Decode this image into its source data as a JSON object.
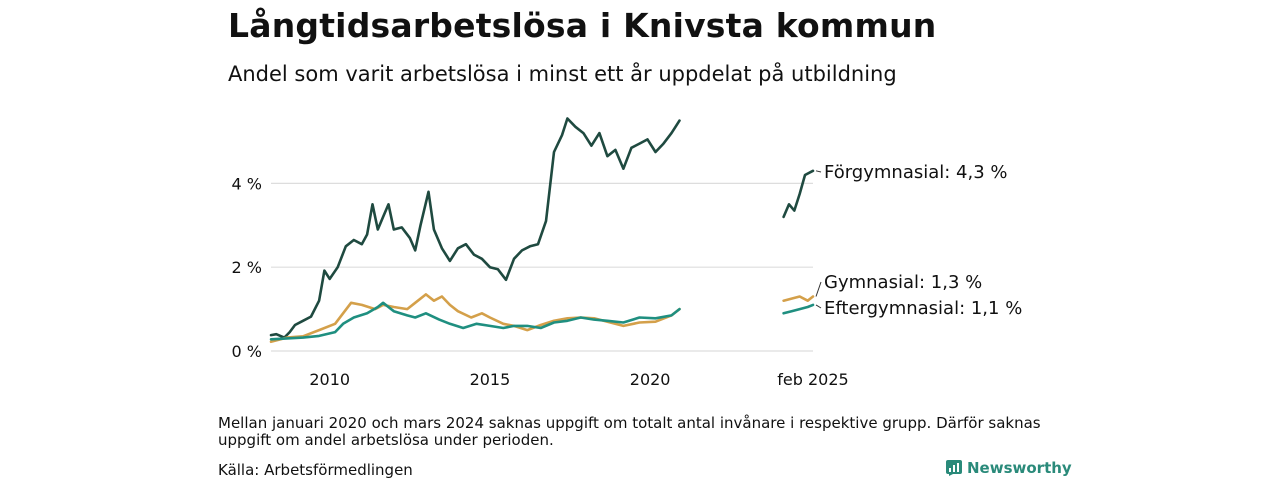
{
  "header": {
    "title": "Långtidsarbetslösa i Knivsta kommun",
    "subtitle": "Andel som varit arbetslösa i minst ett år uppdelat på utbildning"
  },
  "footer": {
    "note": "Mellan januari 2020 och mars 2024 saknas uppgift om totalt antal invånare i respektive grupp. Därför saknas uppgift om andel arbetslösa under perioden.",
    "source": "Källa: Arbetsförmedlingen",
    "brand": "Newsworthy"
  },
  "colors": {
    "forgymnasial": "#1f4a40",
    "gymnasial": "#d4a04a",
    "eftergymnasial": "#1f8f80",
    "grid": "#dddddd",
    "brand": "#2a8a7a"
  },
  "chart_data": {
    "type": "line",
    "title": "Långtidsarbetslösa i Knivsta kommun",
    "subtitle": "Andel som varit arbetslösa i minst ett år uppdelat på utbildning",
    "y_unit": "%",
    "ylim": [
      0,
      5.6
    ],
    "y_ticks": [
      {
        "value": 0,
        "label": "0 %"
      },
      {
        "value": 2,
        "label": "2 %"
      },
      {
        "value": 4,
        "label": "4 %"
      }
    ],
    "x_ticks": [
      {
        "value": "2010-01",
        "label": "2010"
      },
      {
        "value": "2015-01",
        "label": "2015"
      },
      {
        "value": "2020-01",
        "label": "2020"
      },
      {
        "value": "2025-02",
        "label": "feb 2025"
      }
    ],
    "grid": true,
    "series": [
      {
        "name": "Förgymnasial",
        "end_label": "Förgymnasial: 4,3 %",
        "color_key": "forgymnasial",
        "segments": [
          [
            [
              "2008-03",
              0.38
            ],
            [
              "2008-05",
              0.4
            ],
            [
              "2008-08",
              0.32
            ],
            [
              "2008-10",
              0.45
            ],
            [
              "2008-12",
              0.62
            ],
            [
              "2009-03",
              0.72
            ],
            [
              "2009-06",
              0.82
            ],
            [
              "2009-09",
              1.2
            ],
            [
              "2009-11",
              1.92
            ],
            [
              "2010-01",
              1.72
            ],
            [
              "2010-04",
              2.0
            ],
            [
              "2010-07",
              2.5
            ],
            [
              "2010-10",
              2.65
            ],
            [
              "2011-01",
              2.55
            ],
            [
              "2011-03",
              2.78
            ],
            [
              "2011-05",
              3.5
            ],
            [
              "2011-07",
              2.9
            ],
            [
              "2011-09",
              3.2
            ],
            [
              "2011-11",
              3.5
            ],
            [
              "2012-01",
              2.9
            ],
            [
              "2012-04",
              2.95
            ],
            [
              "2012-07",
              2.7
            ],
            [
              "2012-09",
              2.4
            ],
            [
              "2012-11",
              3.0
            ],
            [
              "2013-02",
              3.8
            ],
            [
              "2013-04",
              2.9
            ],
            [
              "2013-07",
              2.45
            ],
            [
              "2013-10",
              2.15
            ],
            [
              "2014-01",
              2.45
            ],
            [
              "2014-04",
              2.55
            ],
            [
              "2014-07",
              2.3
            ],
            [
              "2014-10",
              2.2
            ],
            [
              "2015-01",
              2.0
            ],
            [
              "2015-04",
              1.95
            ],
            [
              "2015-07",
              1.7
            ],
            [
              "2015-10",
              2.2
            ],
            [
              "2016-01",
              2.4
            ],
            [
              "2016-04",
              2.5
            ],
            [
              "2016-07",
              2.55
            ],
            [
              "2016-10",
              3.1
            ],
            [
              "2017-01",
              4.75
            ],
            [
              "2017-04",
              5.15
            ],
            [
              "2017-06",
              5.55
            ],
            [
              "2017-09",
              5.35
            ],
            [
              "2017-12",
              5.2
            ],
            [
              "2018-03",
              4.9
            ],
            [
              "2018-06",
              5.2
            ],
            [
              "2018-09",
              4.65
            ],
            [
              "2018-12",
              4.8
            ],
            [
              "2019-03",
              4.35
            ],
            [
              "2019-06",
              4.85
            ],
            [
              "2019-09",
              4.95
            ],
            [
              "2019-12",
              5.05
            ],
            [
              "2020-03",
              4.75
            ],
            [
              "2020-06",
              4.95
            ],
            [
              "2020-09",
              5.2
            ],
            [
              "2020-12",
              5.5
            ]
          ],
          [
            [
              "2024-03",
              3.2
            ],
            [
              "2024-05",
              3.5
            ],
            [
              "2024-07",
              3.35
            ],
            [
              "2024-09",
              3.75
            ],
            [
              "2024-11",
              4.2
            ],
            [
              "2025-02",
              4.3
            ]
          ]
        ]
      },
      {
        "name": "Gymnasial",
        "end_label": "Gymnasial: 1,3 %",
        "color_key": "gymnasial",
        "segments": [
          [
            [
              "2008-03",
              0.22
            ],
            [
              "2008-09",
              0.32
            ],
            [
              "2009-03",
              0.35
            ],
            [
              "2009-09",
              0.5
            ],
            [
              "2010-03",
              0.65
            ],
            [
              "2010-06",
              0.9
            ],
            [
              "2010-09",
              1.15
            ],
            [
              "2011-01",
              1.1
            ],
            [
              "2011-06",
              1.0
            ],
            [
              "2011-09",
              1.1
            ],
            [
              "2012-01",
              1.05
            ],
            [
              "2012-06",
              1.0
            ],
            [
              "2012-09",
              1.15
            ],
            [
              "2013-01",
              1.35
            ],
            [
              "2013-04",
              1.2
            ],
            [
              "2013-07",
              1.3
            ],
            [
              "2013-10",
              1.1
            ],
            [
              "2014-01",
              0.95
            ],
            [
              "2014-06",
              0.8
            ],
            [
              "2014-10",
              0.9
            ],
            [
              "2015-01",
              0.8
            ],
            [
              "2015-06",
              0.65
            ],
            [
              "2015-10",
              0.6
            ],
            [
              "2016-03",
              0.5
            ],
            [
              "2016-08",
              0.62
            ],
            [
              "2017-01",
              0.72
            ],
            [
              "2017-06",
              0.78
            ],
            [
              "2017-11",
              0.8
            ],
            [
              "2018-04",
              0.78
            ],
            [
              "2018-09",
              0.7
            ],
            [
              "2019-03",
              0.6
            ],
            [
              "2019-09",
              0.68
            ],
            [
              "2020-03",
              0.7
            ],
            [
              "2020-09",
              0.85
            ],
            [
              "2020-12",
              1.0
            ]
          ],
          [
            [
              "2024-03",
              1.2
            ],
            [
              "2024-06",
              1.25
            ],
            [
              "2024-09",
              1.3
            ],
            [
              "2024-12",
              1.2
            ],
            [
              "2025-02",
              1.3
            ]
          ]
        ]
      },
      {
        "name": "Eftergymnasial",
        "end_label": "Eftergymnasial: 1,1 %",
        "color_key": "eftergymnasial",
        "segments": [
          [
            [
              "2008-03",
              0.28
            ],
            [
              "2008-09",
              0.3
            ],
            [
              "2009-03",
              0.32
            ],
            [
              "2009-09",
              0.36
            ],
            [
              "2010-03",
              0.45
            ],
            [
              "2010-06",
              0.65
            ],
            [
              "2010-10",
              0.8
            ],
            [
              "2011-03",
              0.9
            ],
            [
              "2011-07",
              1.05
            ],
            [
              "2011-09",
              1.15
            ],
            [
              "2012-01",
              0.95
            ],
            [
              "2012-06",
              0.85
            ],
            [
              "2012-09",
              0.8
            ],
            [
              "2013-01",
              0.9
            ],
            [
              "2013-06",
              0.75
            ],
            [
              "2013-10",
              0.65
            ],
            [
              "2014-03",
              0.55
            ],
            [
              "2014-08",
              0.65
            ],
            [
              "2015-01",
              0.6
            ],
            [
              "2015-06",
              0.55
            ],
            [
              "2015-10",
              0.6
            ],
            [
              "2016-03",
              0.6
            ],
            [
              "2016-08",
              0.55
            ],
            [
              "2017-01",
              0.68
            ],
            [
              "2017-06",
              0.72
            ],
            [
              "2017-11",
              0.8
            ],
            [
              "2018-04",
              0.75
            ],
            [
              "2018-09",
              0.72
            ],
            [
              "2019-03",
              0.68
            ],
            [
              "2019-09",
              0.8
            ],
            [
              "2020-03",
              0.78
            ],
            [
              "2020-09",
              0.85
            ],
            [
              "2020-12",
              1.0
            ]
          ],
          [
            [
              "2024-03",
              0.9
            ],
            [
              "2024-06",
              0.95
            ],
            [
              "2024-09",
              1.0
            ],
            [
              "2024-12",
              1.05
            ],
            [
              "2025-02",
              1.1
            ]
          ]
        ]
      }
    ]
  }
}
